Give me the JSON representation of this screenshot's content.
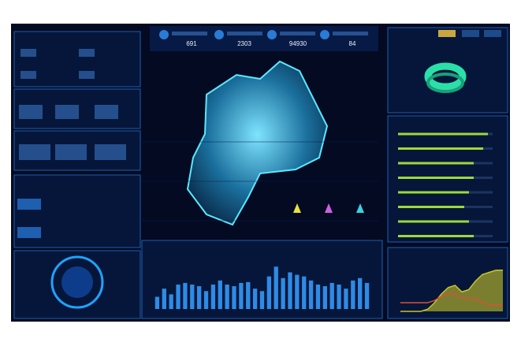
{
  "header": {
    "stats": [
      "691",
      "2303",
      "94930",
      "84"
    ]
  },
  "bar_chart": {
    "values": [
      15,
      25,
      18,
      30,
      32,
      30,
      28,
      22,
      30,
      35,
      30,
      28,
      32,
      33,
      25,
      22,
      40,
      52,
      38,
      45,
      42,
      40,
      35,
      30,
      28,
      32,
      30,
      25,
      35,
      38,
      32
    ],
    "ylim": [
      0,
      60
    ],
    "color": "#2e8be6"
  },
  "progress": {
    "values": [
      95,
      90,
      80,
      80,
      75,
      70,
      75,
      80
    ],
    "max": 100,
    "color": "#9bd93a"
  },
  "line_chart": {
    "ylim": [
      0,
      100
    ],
    "series": [
      {
        "color": "#c8c628",
        "values": [
          0,
          0,
          0,
          0,
          5,
          20,
          40,
          55,
          60,
          45,
          50,
          70,
          85,
          90,
          95,
          95
        ]
      },
      {
        "color": "#d8503a",
        "values": [
          20,
          20,
          20,
          20,
          20,
          25,
          35,
          40,
          40,
          30,
          30,
          30,
          20,
          15,
          15,
          15
        ]
      }
    ]
  }
}
